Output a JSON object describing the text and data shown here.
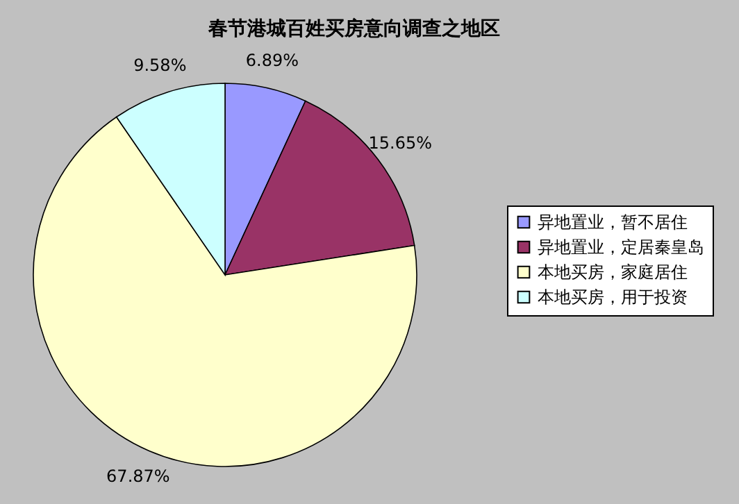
{
  "chart_data": {
    "type": "pie",
    "title": "春节港城百姓买房意向调查之地区",
    "categories": [
      "异地置业，暂不居住",
      "异地置业，定居秦皇岛",
      "本地买房，家庭居住",
      "本地买房，用于投资"
    ],
    "values": [
      6.89,
      15.65,
      67.87,
      9.58
    ],
    "colors": [
      "#9999ff",
      "#993366",
      "#ffffcc",
      "#ccffff"
    ],
    "value_labels": [
      "6.89%",
      "15.65%",
      "67.87%",
      "9.58%"
    ],
    "legend": "right"
  }
}
